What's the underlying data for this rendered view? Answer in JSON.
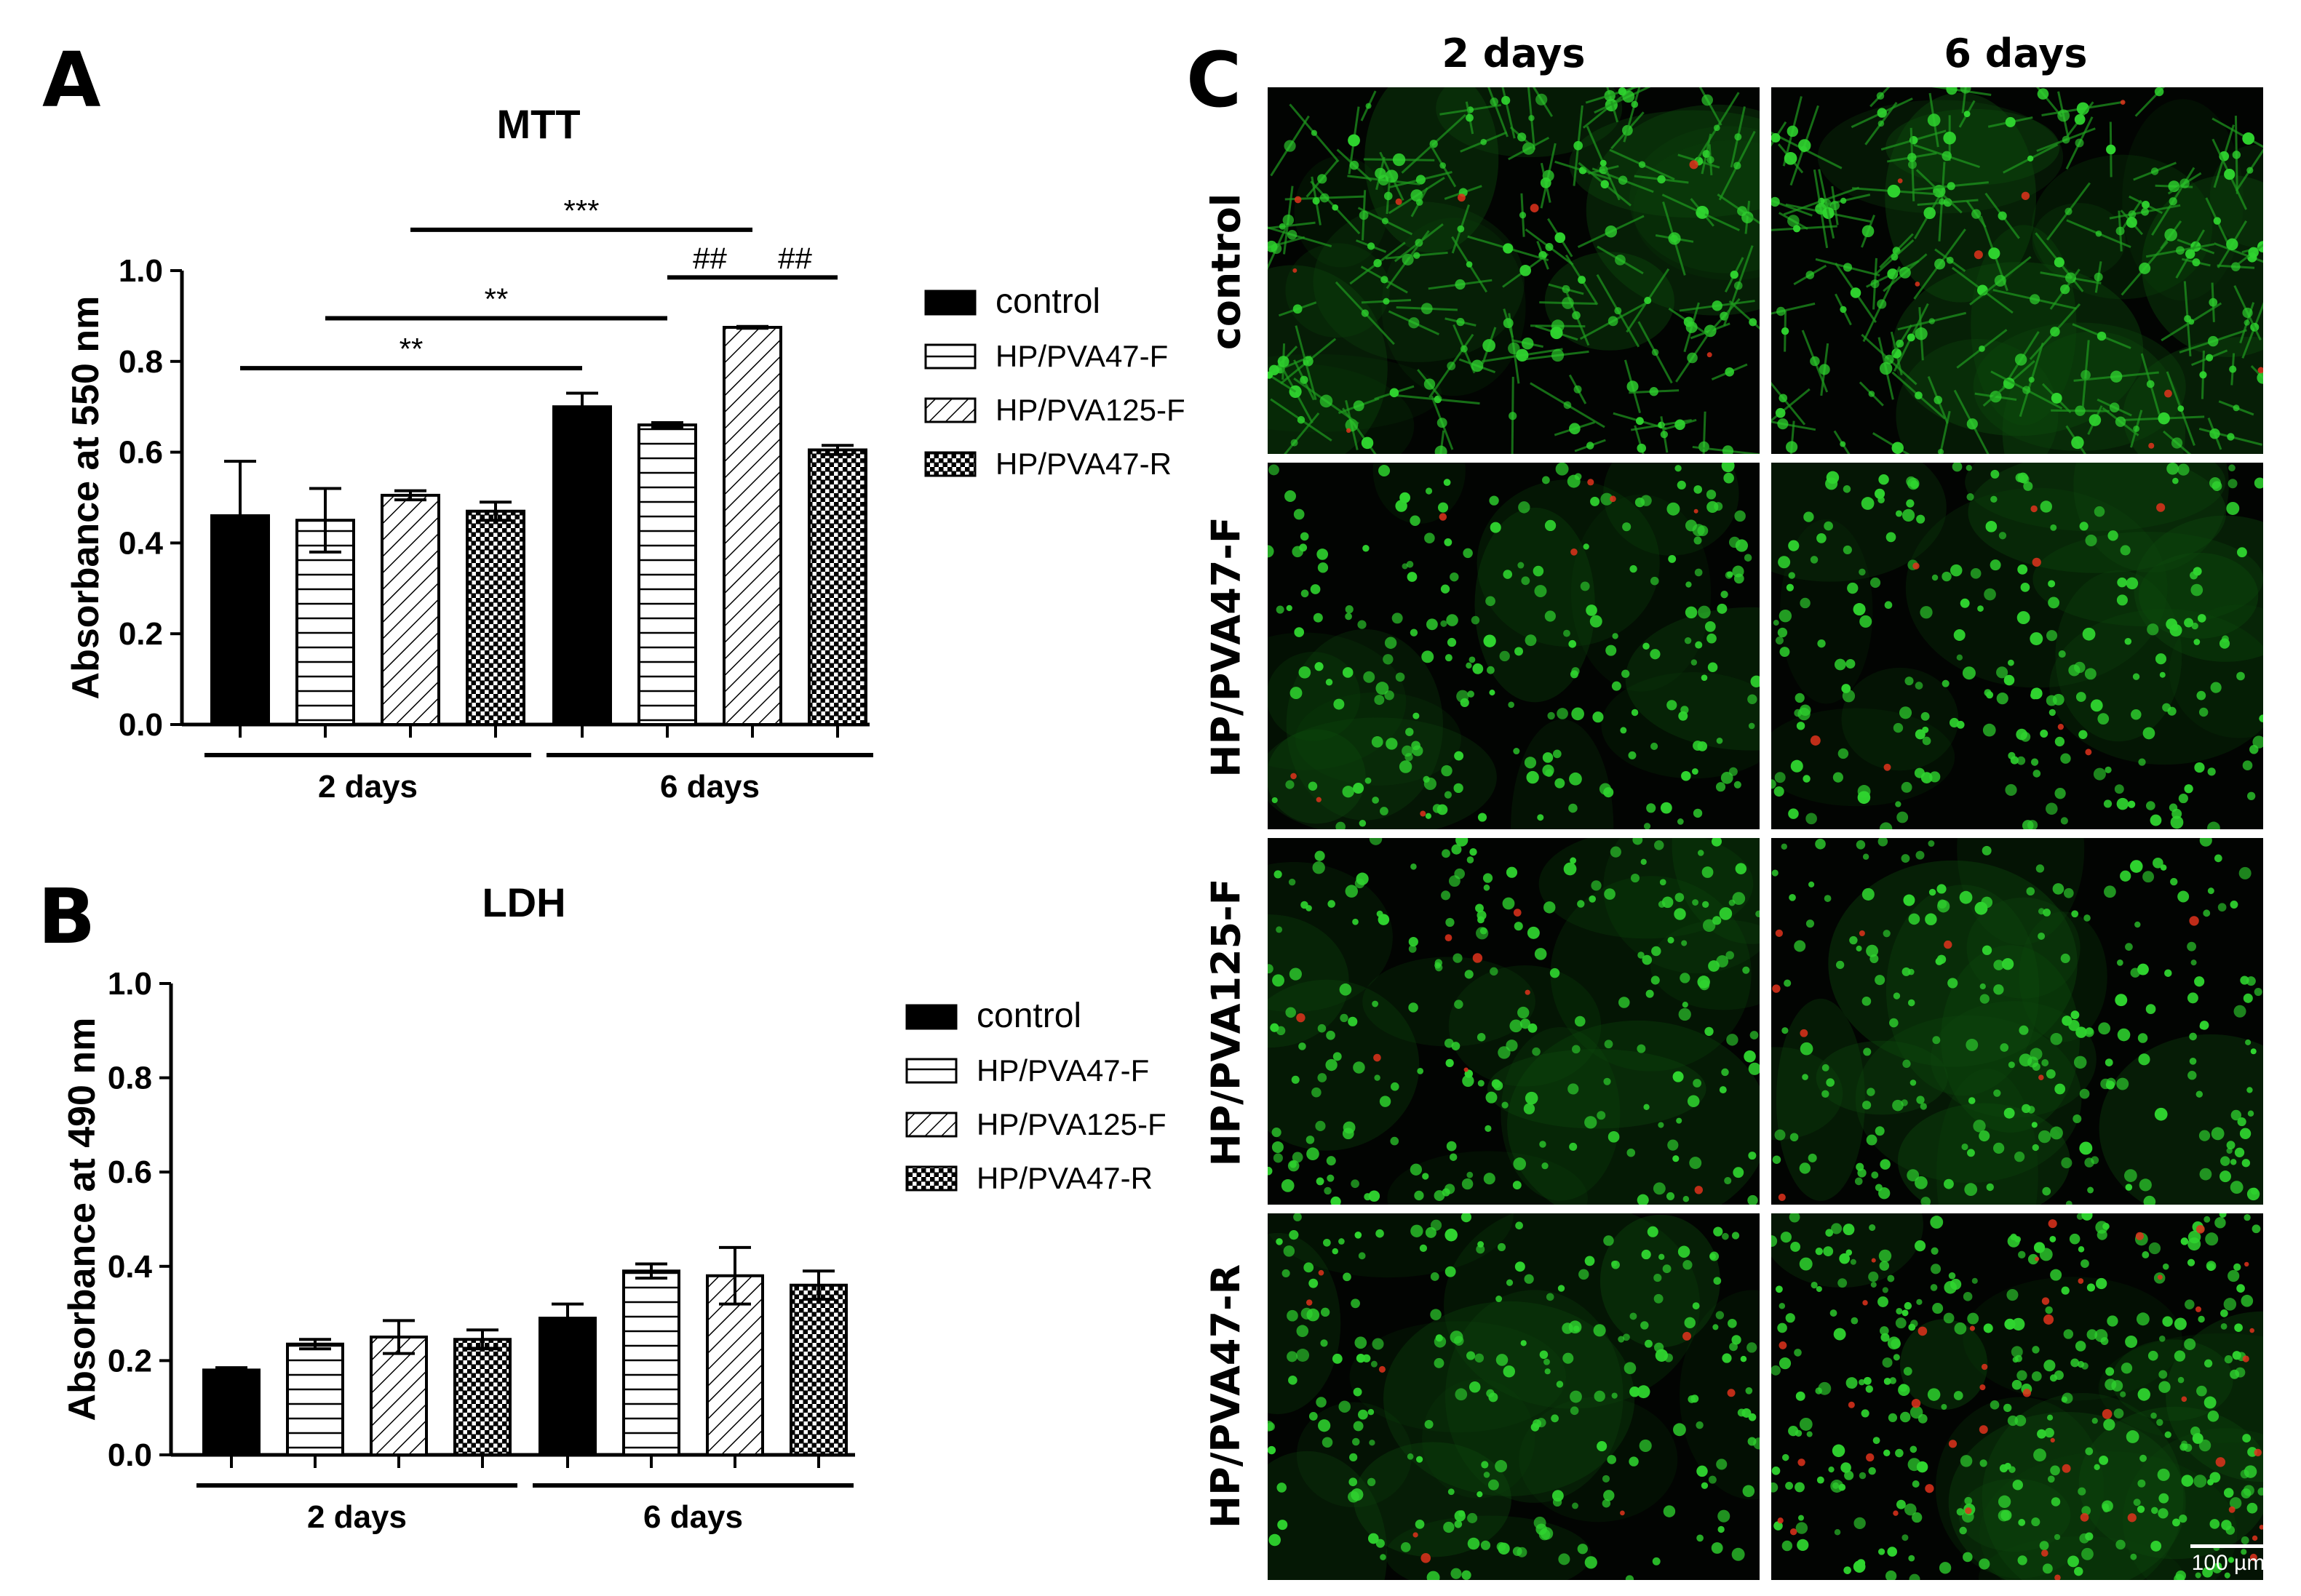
{
  "panel_labels": {
    "a": "A",
    "b": "B",
    "c": "C"
  },
  "legend_entries": [
    "control",
    "HP/PVA47-F",
    "HP/PVA125-F",
    "HP/PVA47-R"
  ],
  "colors": {
    "bar_fill": "#ffffff",
    "control_fill": "#000000",
    "axis": "#000000",
    "live_cells": "#2fd42f",
    "dead_cells": "#e0321c",
    "background": "#020402"
  },
  "chart_data": [
    {
      "id": "A",
      "type": "bar",
      "title": "MTT",
      "ylabel": "Absorbance at 550 nm",
      "xlabel": "",
      "ylim": [
        0,
        1.0
      ],
      "yticks": [
        "0.0",
        "0.2",
        "0.4",
        "0.6",
        "0.8",
        "1.0"
      ],
      "groups": [
        "2 days",
        "6 days"
      ],
      "series": [
        {
          "name": "control",
          "pattern": "solid",
          "values": [
            0.46,
            0.7
          ],
          "errors": [
            0.12,
            0.03
          ]
        },
        {
          "name": "HP/PVA47-F",
          "pattern": "horizontal",
          "values": [
            0.45,
            0.66
          ],
          "errors": [
            0.07,
            0.005
          ]
        },
        {
          "name": "HP/PVA125-F",
          "pattern": "diagonal",
          "values": [
            0.505,
            0.875
          ],
          "errors": [
            0.01,
            0.002
          ]
        },
        {
          "name": "HP/PVA47-R",
          "pattern": "checker",
          "values": [
            0.47,
            0.605
          ],
          "errors": [
            0.02,
            0.01
          ]
        }
      ],
      "significance": [
        {
          "label": "**",
          "from_bar": [
            0,
            0
          ],
          "to_bar": [
            1,
            0
          ],
          "y": 0.785
        },
        {
          "label": "**",
          "from_bar": [
            0,
            1
          ],
          "to_bar": [
            1,
            1
          ],
          "y": 0.895
        },
        {
          "label": "***",
          "from_bar": [
            0,
            2
          ],
          "to_bar": [
            1,
            2
          ],
          "y": 1.09
        },
        {
          "label": "##",
          "from_bar": [
            1,
            1
          ],
          "to_bar": [
            1,
            2
          ],
          "y": 0.985
        },
        {
          "label": "##",
          "from_bar": [
            1,
            2
          ],
          "to_bar": [
            1,
            3
          ],
          "y": 0.985
        }
      ],
      "legend": "right"
    },
    {
      "id": "B",
      "type": "bar",
      "title": "LDH",
      "ylabel": "Absorbance at 490 nm",
      "xlabel": "",
      "ylim": [
        0,
        1.0
      ],
      "yticks": [
        "0.0",
        "0.2",
        "0.4",
        "0.6",
        "0.8",
        "1.0"
      ],
      "groups": [
        "2 days",
        "6 days"
      ],
      "series": [
        {
          "name": "control",
          "pattern": "solid",
          "values": [
            0.18,
            0.29
          ],
          "errors": [
            0.005,
            0.03
          ]
        },
        {
          "name": "HP/PVA47-F",
          "pattern": "horizontal",
          "values": [
            0.235,
            0.39
          ],
          "errors": [
            0.01,
            0.015
          ]
        },
        {
          "name": "HP/PVA125-F",
          "pattern": "diagonal",
          "values": [
            0.25,
            0.38
          ],
          "errors": [
            0.035,
            0.06
          ]
        },
        {
          "name": "HP/PVA47-R",
          "pattern": "checker",
          "values": [
            0.245,
            0.36
          ],
          "errors": [
            0.02,
            0.03
          ]
        }
      ],
      "significance": [],
      "legend": "right"
    }
  ],
  "micrographs": {
    "columns": [
      "2 days",
      "6 days"
    ],
    "rows": [
      "control",
      "HP/PVA47-F",
      "HP/PVA125-F",
      "HP/PVA47-R"
    ],
    "scale_bar": "100 µm"
  }
}
